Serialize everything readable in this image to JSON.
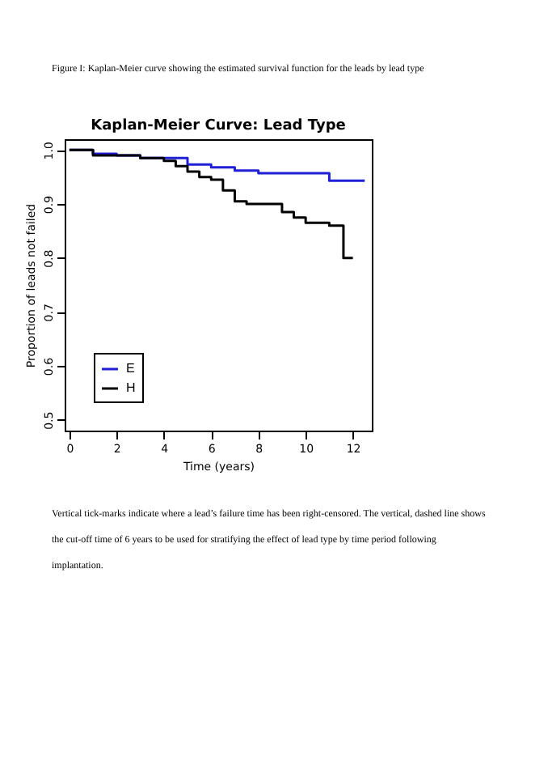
{
  "chart_data": {
    "type": "step",
    "title": "Kaplan-Meier Curve: Lead Type",
    "xlabel": "Time (years)",
    "ylabel": "Proportion of leads not failed",
    "annotations": [
      "Figure I: Kaplan-Meier curve showing the estimated survival function for the leads by lead type",
      "Vertical tick-marks indicate where a lead’s failure time has been right-censored.  The vertical, dashed line shows the cut-off time of 6 years to be used for stratifying the effect of lead type by time period following implantation."
    ],
    "x": [
      0,
      1,
      2,
      3,
      4,
      5,
      6,
      7,
      8,
      9,
      10,
      11,
      12.5
    ],
    "series": [
      {
        "name": "E",
        "color": "#1f1fd6",
        "values": [
          1.0,
          0.993,
          0.99,
          0.985,
          0.985,
          0.973,
          0.968,
          0.962,
          0.957,
          0.957,
          0.957,
          0.943,
          0.943
        ]
      },
      {
        "name": "H",
        "color": "#000000",
        "x": [
          0,
          1,
          2,
          3,
          4,
          4.5,
          5,
          5.5,
          6,
          6.5,
          7,
          7.5,
          8.5,
          9,
          9.5,
          10,
          11,
          11.6,
          12
        ],
        "values": [
          1.0,
          0.99,
          0.99,
          0.985,
          0.98,
          0.97,
          0.96,
          0.95,
          0.945,
          0.925,
          0.905,
          0.9,
          0.9,
          0.885,
          0.875,
          0.865,
          0.86,
          0.8,
          0.8
        ]
      }
    ],
    "xlim": [
      -0.2,
      12.8
    ],
    "xticks": [
      0,
      2,
      4,
      6,
      8,
      10,
      12
    ],
    "ylim": [
      0.48,
      1.02
    ],
    "yticks": [
      0.5,
      0.6,
      0.7,
      0.8,
      0.9,
      {
        "value": 1,
        "label": "1.0"
      }
    ],
    "grid": false,
    "legend": "bottom left",
    "line_style": "solid"
  }
}
